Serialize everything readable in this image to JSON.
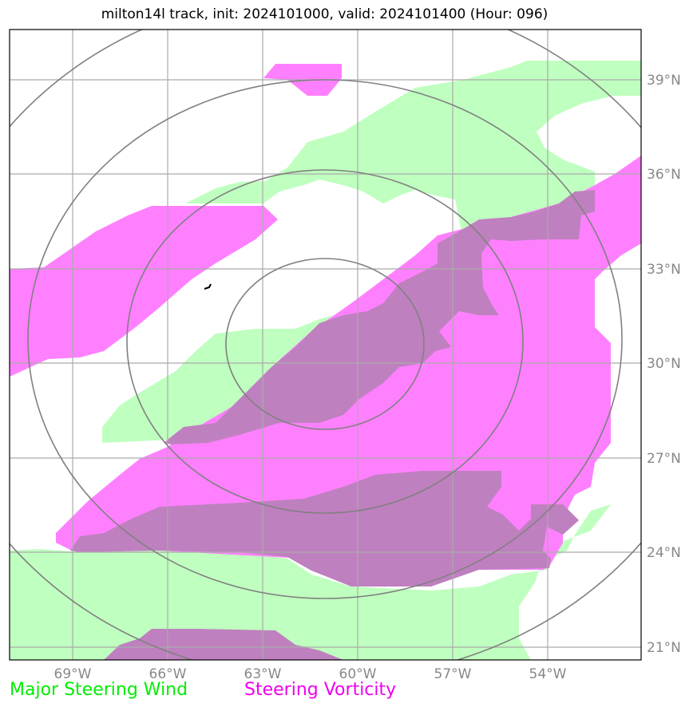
{
  "title": "milton14l track, init: 2024101000, valid: 2024101400 (Hour: 096)",
  "map": {
    "lon_ticks": [
      "69°W",
      "66°W",
      "63°W",
      "60°W",
      "57°W",
      "54°W"
    ],
    "lat_ticks": [
      "39°N",
      "36°N",
      "33°N",
      "30°N",
      "27°N",
      "24°N",
      "21°N"
    ],
    "lon_range": [
      -71,
      -51
    ],
    "lat_range": [
      20.6,
      40.6
    ],
    "grid": true,
    "range_rings_center": {
      "lon": -61,
      "lat": 30.7
    },
    "colors": {
      "wind": "#bfffbf",
      "vorticity": "#ff80ff",
      "overlap": "#bf80bf",
      "ring": "#808080",
      "grid": "#aaaaaa"
    }
  },
  "legend": {
    "wind_label": "Major Steering Wind",
    "wind_color": "#00ee00",
    "vorticity_label": "Steering Vorticity",
    "vorticity_color": "#ee00ee"
  }
}
